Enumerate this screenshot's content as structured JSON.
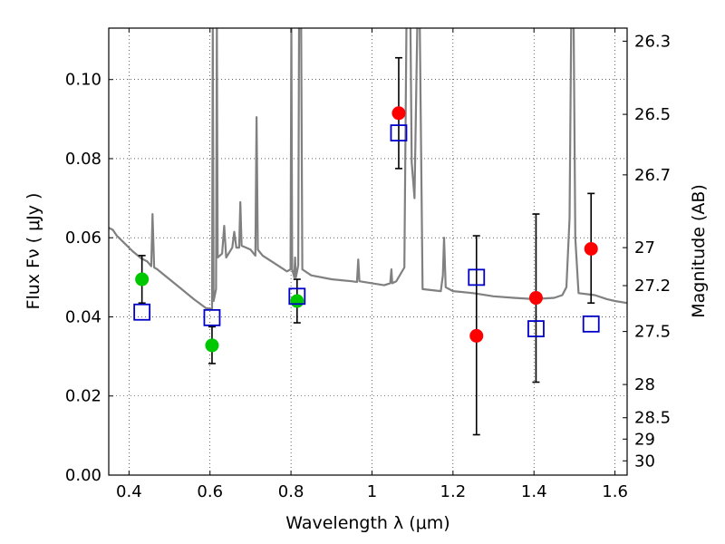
{
  "chart_data": {
    "type": "scatter",
    "xlabel": "Wavelength  λ (μm)",
    "ylabel": "Flux  Fν  ( μJy )",
    "y2label": "Magnitude (AB)",
    "xlim": [
      0.35,
      1.63
    ],
    "ylim": [
      0.0,
      0.113
    ],
    "grid": true,
    "x_ticks": [
      0.4,
      0.6,
      0.8,
      1.0,
      1.2,
      1.4,
      1.6
    ],
    "x_tick_labels": [
      "0.4",
      "0.6",
      "0.8",
      "1",
      "1.2",
      "1.4",
      "1.6"
    ],
    "y_ticks": [
      0.0,
      0.02,
      0.04,
      0.06,
      0.08,
      0.1
    ],
    "y_tick_labels": [
      "0.00",
      "0.02",
      "0.04",
      "0.06",
      "0.08",
      "0.10"
    ],
    "y2_ticks": [
      {
        "label": "26.3",
        "flux": 0.1097
      },
      {
        "label": "26.5",
        "flux": 0.0912
      },
      {
        "label": "26.7",
        "flux": 0.0759
      },
      {
        "label": "27",
        "flux": 0.0575
      },
      {
        "label": "27.2",
        "flux": 0.0479
      },
      {
        "label": "27.5",
        "flux": 0.0363
      },
      {
        "label": "28",
        "flux": 0.0229
      },
      {
        "label": "28.5",
        "flux": 0.0145
      },
      {
        "label": "29",
        "flux": 0.0091
      },
      {
        "label": "30",
        "flux": 0.0036
      }
    ],
    "series": [
      {
        "type": "line",
        "color": "#808080",
        "points": [
          [
            0.35,
            0.0625
          ],
          [
            0.36,
            0.062
          ],
          [
            0.37,
            0.0605
          ],
          [
            0.39,
            0.0585
          ],
          [
            0.41,
            0.0565
          ],
          [
            0.43,
            0.0548
          ],
          [
            0.445,
            0.054
          ],
          [
            0.455,
            0.0528
          ],
          [
            0.458,
            0.066
          ],
          [
            0.462,
            0.0525
          ],
          [
            0.47,
            0.052
          ],
          [
            0.5,
            0.0495
          ],
          [
            0.53,
            0.047
          ],
          [
            0.56,
            0.0445
          ],
          [
            0.59,
            0.0422
          ],
          [
            0.605,
            0.042
          ],
          [
            0.607,
            0.114
          ],
          [
            0.609,
            0.044
          ],
          [
            0.615,
            0.047
          ],
          [
            0.617,
            0.114
          ],
          [
            0.619,
            0.055
          ],
          [
            0.63,
            0.056
          ],
          [
            0.635,
            0.063
          ],
          [
            0.64,
            0.055
          ],
          [
            0.655,
            0.0575
          ],
          [
            0.66,
            0.0615
          ],
          [
            0.665,
            0.0575
          ],
          [
            0.672,
            0.0575
          ],
          [
            0.675,
            0.069
          ],
          [
            0.678,
            0.058
          ],
          [
            0.7,
            0.057
          ],
          [
            0.712,
            0.0555
          ],
          [
            0.715,
            0.0905
          ],
          [
            0.718,
            0.057
          ],
          [
            0.73,
            0.0555
          ],
          [
            0.76,
            0.0535
          ],
          [
            0.79,
            0.0515
          ],
          [
            0.799,
            0.052
          ],
          [
            0.801,
            0.114
          ],
          [
            0.803,
            0.052
          ],
          [
            0.808,
            0.05
          ],
          [
            0.81,
            0.055
          ],
          [
            0.812,
            0.05
          ],
          [
            0.818,
            0.053
          ],
          [
            0.82,
            0.114
          ],
          [
            0.825,
            0.114
          ],
          [
            0.828,
            0.052
          ],
          [
            0.85,
            0.0505
          ],
          [
            0.9,
            0.0495
          ],
          [
            0.95,
            0.049
          ],
          [
            0.963,
            0.0488
          ],
          [
            0.966,
            0.0545
          ],
          [
            0.969,
            0.049
          ],
          [
            1.0,
            0.0485
          ],
          [
            1.03,
            0.048
          ],
          [
            1.045,
            0.0485
          ],
          [
            1.048,
            0.052
          ],
          [
            1.05,
            0.0485
          ],
          [
            1.06,
            0.049
          ],
          [
            1.08,
            0.0525
          ],
          [
            1.085,
            0.114
          ],
          [
            1.095,
            0.114
          ],
          [
            1.098,
            0.079
          ],
          [
            1.105,
            0.07
          ],
          [
            1.112,
            0.114
          ],
          [
            1.118,
            0.114
          ],
          [
            1.125,
            0.047
          ],
          [
            1.17,
            0.0465
          ],
          [
            1.175,
            0.0505
          ],
          [
            1.178,
            0.06
          ],
          [
            1.182,
            0.0475
          ],
          [
            1.2,
            0.0465
          ],
          [
            1.25,
            0.046
          ],
          [
            1.3,
            0.0452
          ],
          [
            1.35,
            0.0448
          ],
          [
            1.4,
            0.0445
          ],
          [
            1.45,
            0.0448
          ],
          [
            1.47,
            0.0455
          ],
          [
            1.48,
            0.0475
          ],
          [
            1.488,
            0.065
          ],
          [
            1.492,
            0.114
          ],
          [
            1.498,
            0.114
          ],
          [
            1.502,
            0.06
          ],
          [
            1.51,
            0.046
          ],
          [
            1.55,
            0.0455
          ],
          [
            1.58,
            0.0445
          ],
          [
            1.6,
            0.044
          ],
          [
            1.63,
            0.0435
          ]
        ]
      },
      {
        "type": "errorbar",
        "color": "#000000",
        "bars": [
          {
            "x": 0.432,
            "lo": 0.0435,
            "hi": 0.0555
          },
          {
            "x": 0.605,
            "lo": 0.0282,
            "hi": 0.0375
          },
          {
            "x": 0.815,
            "lo": 0.0385,
            "hi": 0.0495
          },
          {
            "x": 1.066,
            "lo": 0.0775,
            "hi": 0.1055
          },
          {
            "x": 1.258,
            "lo": 0.0102,
            "hi": 0.0605
          },
          {
            "x": 1.405,
            "lo": 0.0235,
            "hi": 0.066
          },
          {
            "x": 1.541,
            "lo": 0.0435,
            "hi": 0.0712
          }
        ]
      },
      {
        "type": "scatter",
        "marker": "circle",
        "color": "#00c800",
        "points": [
          [
            0.432,
            0.0495
          ],
          [
            0.605,
            0.0328
          ],
          [
            0.815,
            0.044
          ]
        ]
      },
      {
        "type": "scatter",
        "marker": "circle",
        "color": "#ff0000",
        "points": [
          [
            1.066,
            0.0915
          ],
          [
            1.258,
            0.0352
          ],
          [
            1.405,
            0.0448
          ],
          [
            1.541,
            0.0572
          ]
        ]
      },
      {
        "type": "scatter",
        "marker": "open-square",
        "color": "#0000c8",
        "points": [
          [
            0.432,
            0.0412
          ],
          [
            0.605,
            0.0398
          ],
          [
            0.815,
            0.0452
          ],
          [
            1.066,
            0.0865
          ],
          [
            1.258,
            0.05
          ],
          [
            1.405,
            0.037
          ],
          [
            1.541,
            0.0382
          ]
        ]
      }
    ]
  }
}
